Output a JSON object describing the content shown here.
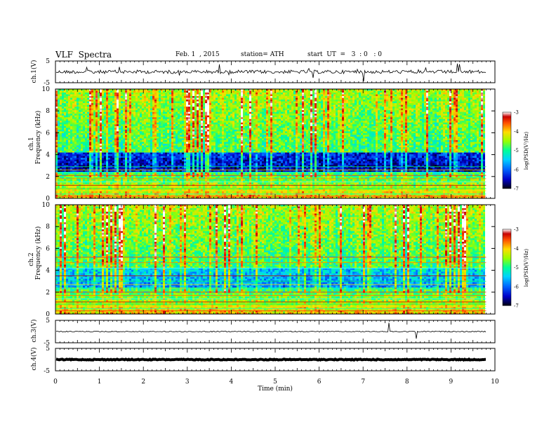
{
  "header": {
    "title": "VLF  Spectra",
    "date": "Feb. 1  , 2015",
    "station": "station= ATH",
    "start_ut": "start  UT  =   3  : 0   : 0"
  },
  "chart_data": [
    {
      "type": "line",
      "panel": "ch1-waveform",
      "ylabel": "ch.1(V)",
      "ylim": [
        -5,
        5
      ],
      "y_ticks": [
        "5",
        "-5"
      ],
      "x_range_min": [
        0,
        9.8
      ],
      "mean_level_V": 0,
      "description_values": {
        "typical_amplitude_V": 0.5
      }
    },
    {
      "type": "heatmap",
      "panel": "ch1-spectrogram",
      "ylabel": "ch.1\nFrequency  (kHz)",
      "ylim_khz": [
        0,
        10
      ],
      "y_ticks": [
        "0",
        "2",
        "4",
        "6",
        "8",
        "10"
      ],
      "colorbar_label": "log(PSD(V²/Hz)",
      "colorbar_range": [
        -7,
        -3
      ],
      "colorbar_ticks": [
        "-3",
        "-4",
        "-5",
        "-6",
        "-7"
      ]
    },
    {
      "type": "heatmap",
      "panel": "ch2-spectrogram",
      "ylabel": "ch.2\nFrequency  (kHz)",
      "ylim_khz": [
        0,
        10
      ],
      "y_ticks": [
        "0",
        "2",
        "4",
        "6",
        "8",
        "10"
      ],
      "colorbar_label": "log(PSD(V²/Hz)",
      "colorbar_range": [
        -7,
        -3
      ],
      "colorbar_ticks": [
        "-3",
        "-4",
        "-5",
        "-6",
        "-7"
      ]
    },
    {
      "type": "line",
      "panel": "ch3-waveform",
      "ylabel": "ch.3(V)",
      "ylim": [
        -5,
        5
      ],
      "y_ticks": [
        "5",
        "-5"
      ],
      "mean_level_V": 0
    },
    {
      "type": "line",
      "panel": "ch4-waveform",
      "ylabel": "ch.4(V)",
      "ylim": [
        -5,
        5
      ],
      "y_ticks": [
        "5",
        "-5"
      ],
      "mean_level_V": 0
    }
  ],
  "x_axis": {
    "label": "Time  (min)",
    "range_min": [
      0,
      10
    ],
    "ticks": [
      "0",
      "1",
      "2",
      "3",
      "4",
      "5",
      "6",
      "7",
      "8",
      "9",
      "10"
    ],
    "data_end_min": 9.8
  },
  "colors": {
    "frame": "#000000",
    "colormap": [
      "#000010",
      "#0000c8",
      "#0064ff",
      "#00d2ff",
      "#00ff96",
      "#96ff00",
      "#ffdc00",
      "#ff5000",
      "#c80000",
      "#ffffff"
    ]
  }
}
